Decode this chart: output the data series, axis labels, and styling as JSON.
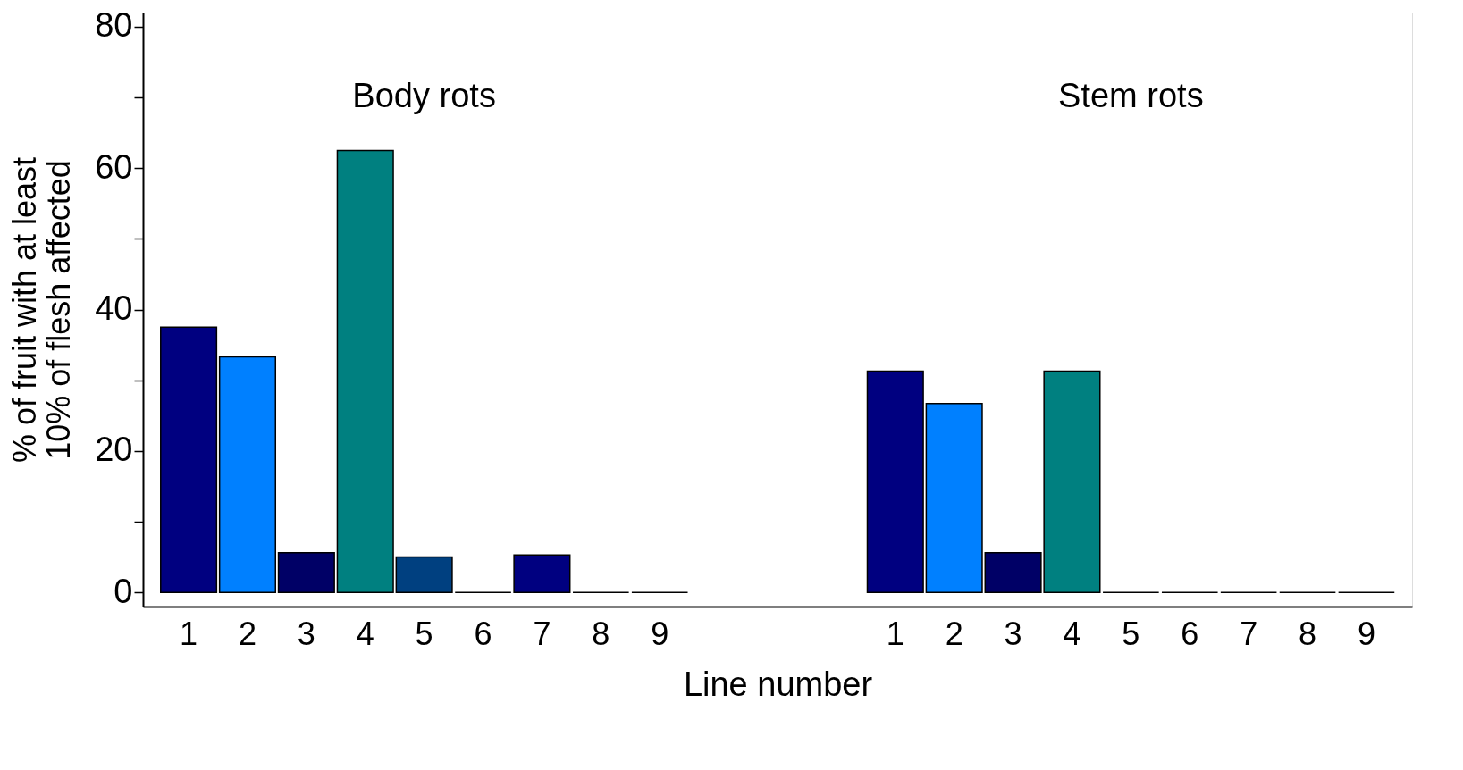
{
  "chart_data": {
    "type": "bar",
    "xlabel": "Line number",
    "ylabel": "% of fruit with at least\n10% of flesh affected",
    "categories": [
      "1",
      "2",
      "3",
      "4",
      "5",
      "6",
      "7",
      "8",
      "9",
      null,
      null,
      null,
      "1",
      "2",
      "3",
      "4",
      "5",
      "6",
      "7",
      "8",
      "9"
    ],
    "values": [
      37.5,
      33.3,
      5.6,
      62.5,
      5,
      0,
      5.3,
      0,
      0,
      null,
      null,
      null,
      31.3,
      26.7,
      5.6,
      31.3,
      0,
      0,
      0,
      0,
      0
    ],
    "colors": [
      "#000080",
      "#0080ff",
      "#000066",
      "#008080",
      "#004080",
      "#000000",
      "#000080",
      "#000000",
      "#000000",
      null,
      null,
      null,
      "#000080",
      "#0080ff",
      "#000066",
      "#008080",
      "#000000",
      "#000000",
      "#000000",
      "#000000",
      "#000000"
    ],
    "ylim": [
      -2,
      82
    ],
    "yticks": [
      0,
      {
        "value": 10,
        "label": null
      },
      20,
      {
        "value": 30,
        "label": null
      },
      40,
      {
        "value": 50,
        "label": null
      },
      60,
      {
        "value": 70,
        "label": null
      },
      80
    ],
    "annotations": [
      "Body rots",
      "Stem rots"
    ],
    "grid": false
  }
}
